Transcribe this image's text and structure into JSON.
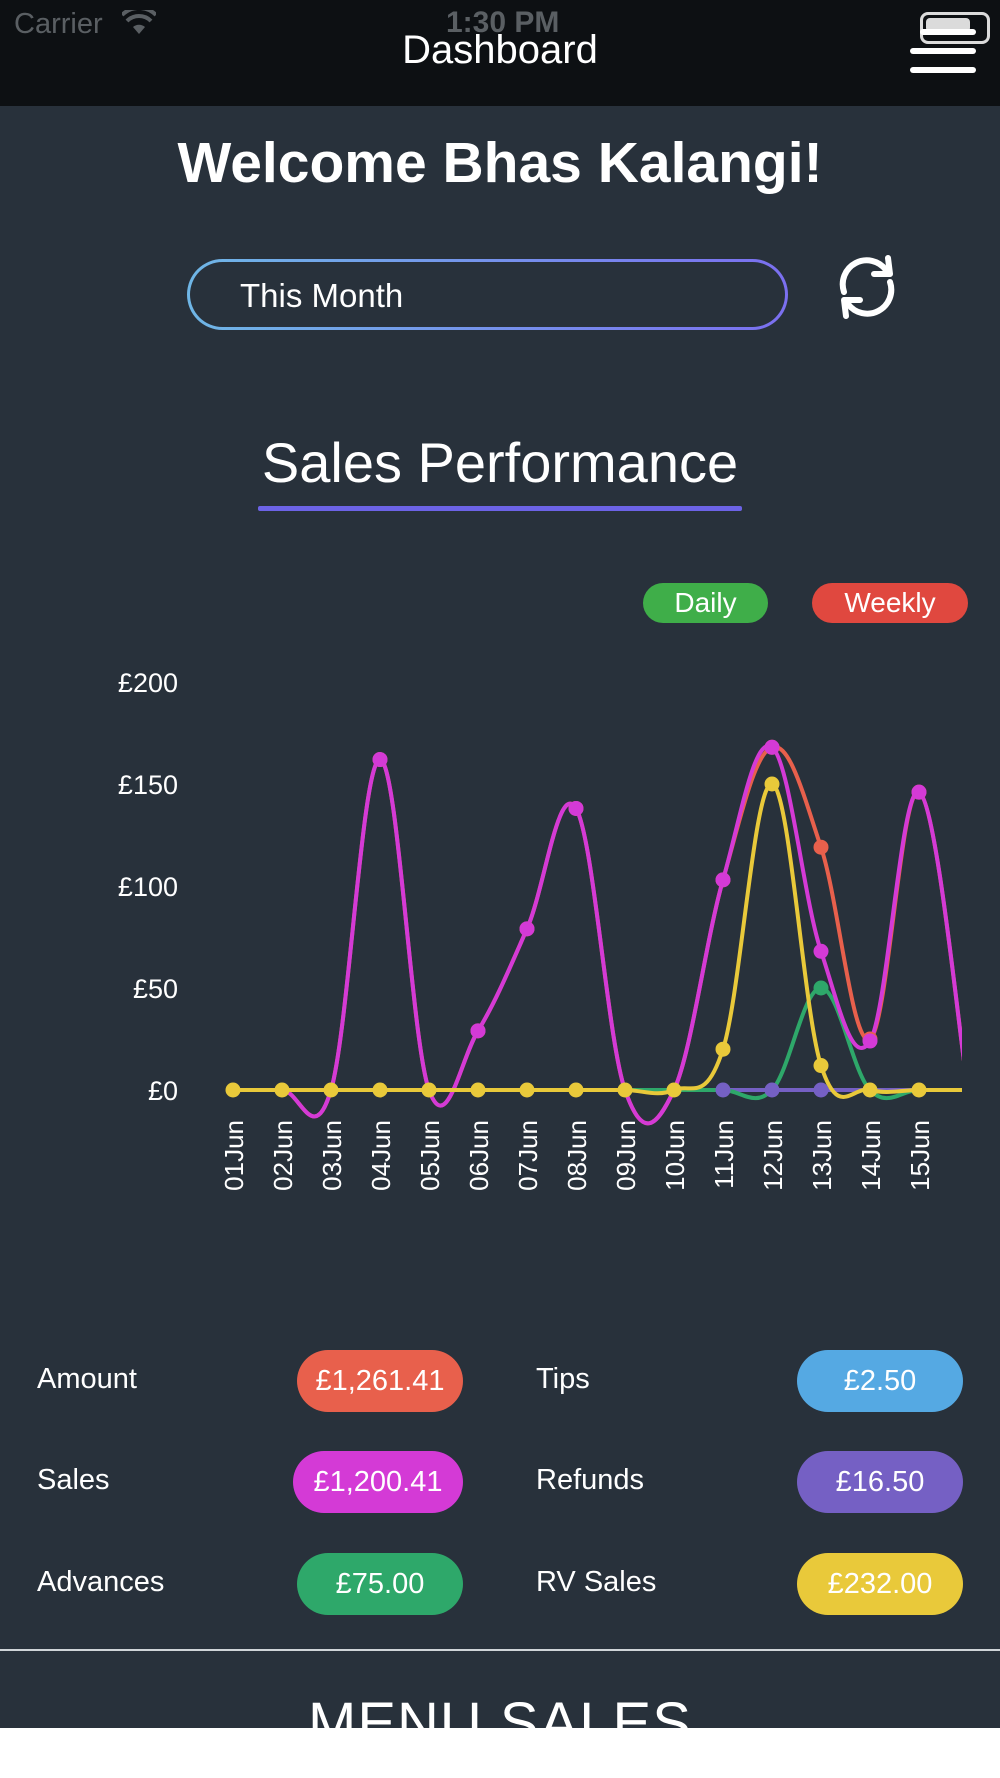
{
  "status_bar": {
    "carrier": "Carrier",
    "time": "1:30 PM"
  },
  "nav": {
    "title": "Dashboard",
    "menu_icon": "hamburger-menu-icon"
  },
  "welcome": "Welcome Bhas Kalangi!",
  "period_select": {
    "value": "This Month",
    "refresh_icon": "refresh-icon"
  },
  "section_title": "Sales Performance",
  "legend": {
    "daily": "Daily",
    "weekly": "Weekly"
  },
  "colors": {
    "background": "#28313b",
    "amount": "#e8604c",
    "sales": "#d43ad6",
    "advances": "#2ea86a",
    "tips": "#55a9e3",
    "refunds": "#7560c4",
    "rv_sales": "#e9c93a",
    "daily": "#3fae49",
    "weekly": "#e0483f"
  },
  "chart_data": {
    "type": "line",
    "categories": [
      "01Jun",
      "02Jun",
      "03Jun",
      "04Jun",
      "05Jun",
      "06Jun",
      "07Jun",
      "08Jun",
      "09Jun",
      "10Jun",
      "11Jun",
      "12Jun",
      "13Jun",
      "14Jun",
      "15Jun"
    ],
    "y_tick_labels": [
      "£0",
      "£50",
      "£100",
      "£150",
      "£200"
    ],
    "ylim": [
      0,
      200
    ],
    "series": [
      {
        "key": "amount",
        "values": [
          0,
          0,
          0,
          162,
          0,
          29,
          79,
          138,
          0,
          0,
          103,
          168,
          119,
          25,
          146
        ]
      },
      {
        "key": "sales",
        "values": [
          0,
          0,
          0,
          162,
          0,
          29,
          79,
          138,
          0,
          0,
          103,
          168,
          68,
          24,
          146
        ]
      },
      {
        "key": "advances",
        "values": [
          0,
          0,
          0,
          0,
          0,
          0,
          0,
          0,
          0,
          0,
          0,
          0,
          50,
          0,
          0
        ]
      },
      {
        "key": "refunds",
        "values": [
          0,
          0,
          0,
          0,
          0,
          0,
          0,
          0,
          0,
          0,
          0,
          0,
          0,
          0,
          0
        ]
      },
      {
        "key": "rv_sales",
        "values": [
          0,
          0,
          0,
          0,
          0,
          0,
          0,
          0,
          0,
          0,
          20,
          150,
          12,
          0,
          0
        ]
      }
    ]
  },
  "summary": [
    {
      "label": "Amount",
      "value": "£1,261.41"
    },
    {
      "label": "Tips",
      "value": "£2.50"
    },
    {
      "label": "Sales",
      "value": "£1,200.41"
    },
    {
      "label": "Refunds",
      "value": "£16.50"
    },
    {
      "label": "Advances",
      "value": "£75.00"
    },
    {
      "label": "RV Sales",
      "value": "£232.00"
    }
  ],
  "menu_sales_title": "MENU SALES"
}
